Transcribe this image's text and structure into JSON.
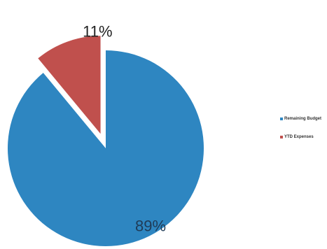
{
  "chart_data": {
    "type": "pie",
    "slices": [
      {
        "name": "Remaining Budget",
        "value": 89,
        "label": "89%",
        "color": "#2e86c1",
        "exploded": false
      },
      {
        "name": "YTD Expenses",
        "value": 11,
        "label": "11%",
        "color": "#c0504d",
        "exploded": true
      }
    ],
    "legend_position": "right",
    "title": ""
  }
}
